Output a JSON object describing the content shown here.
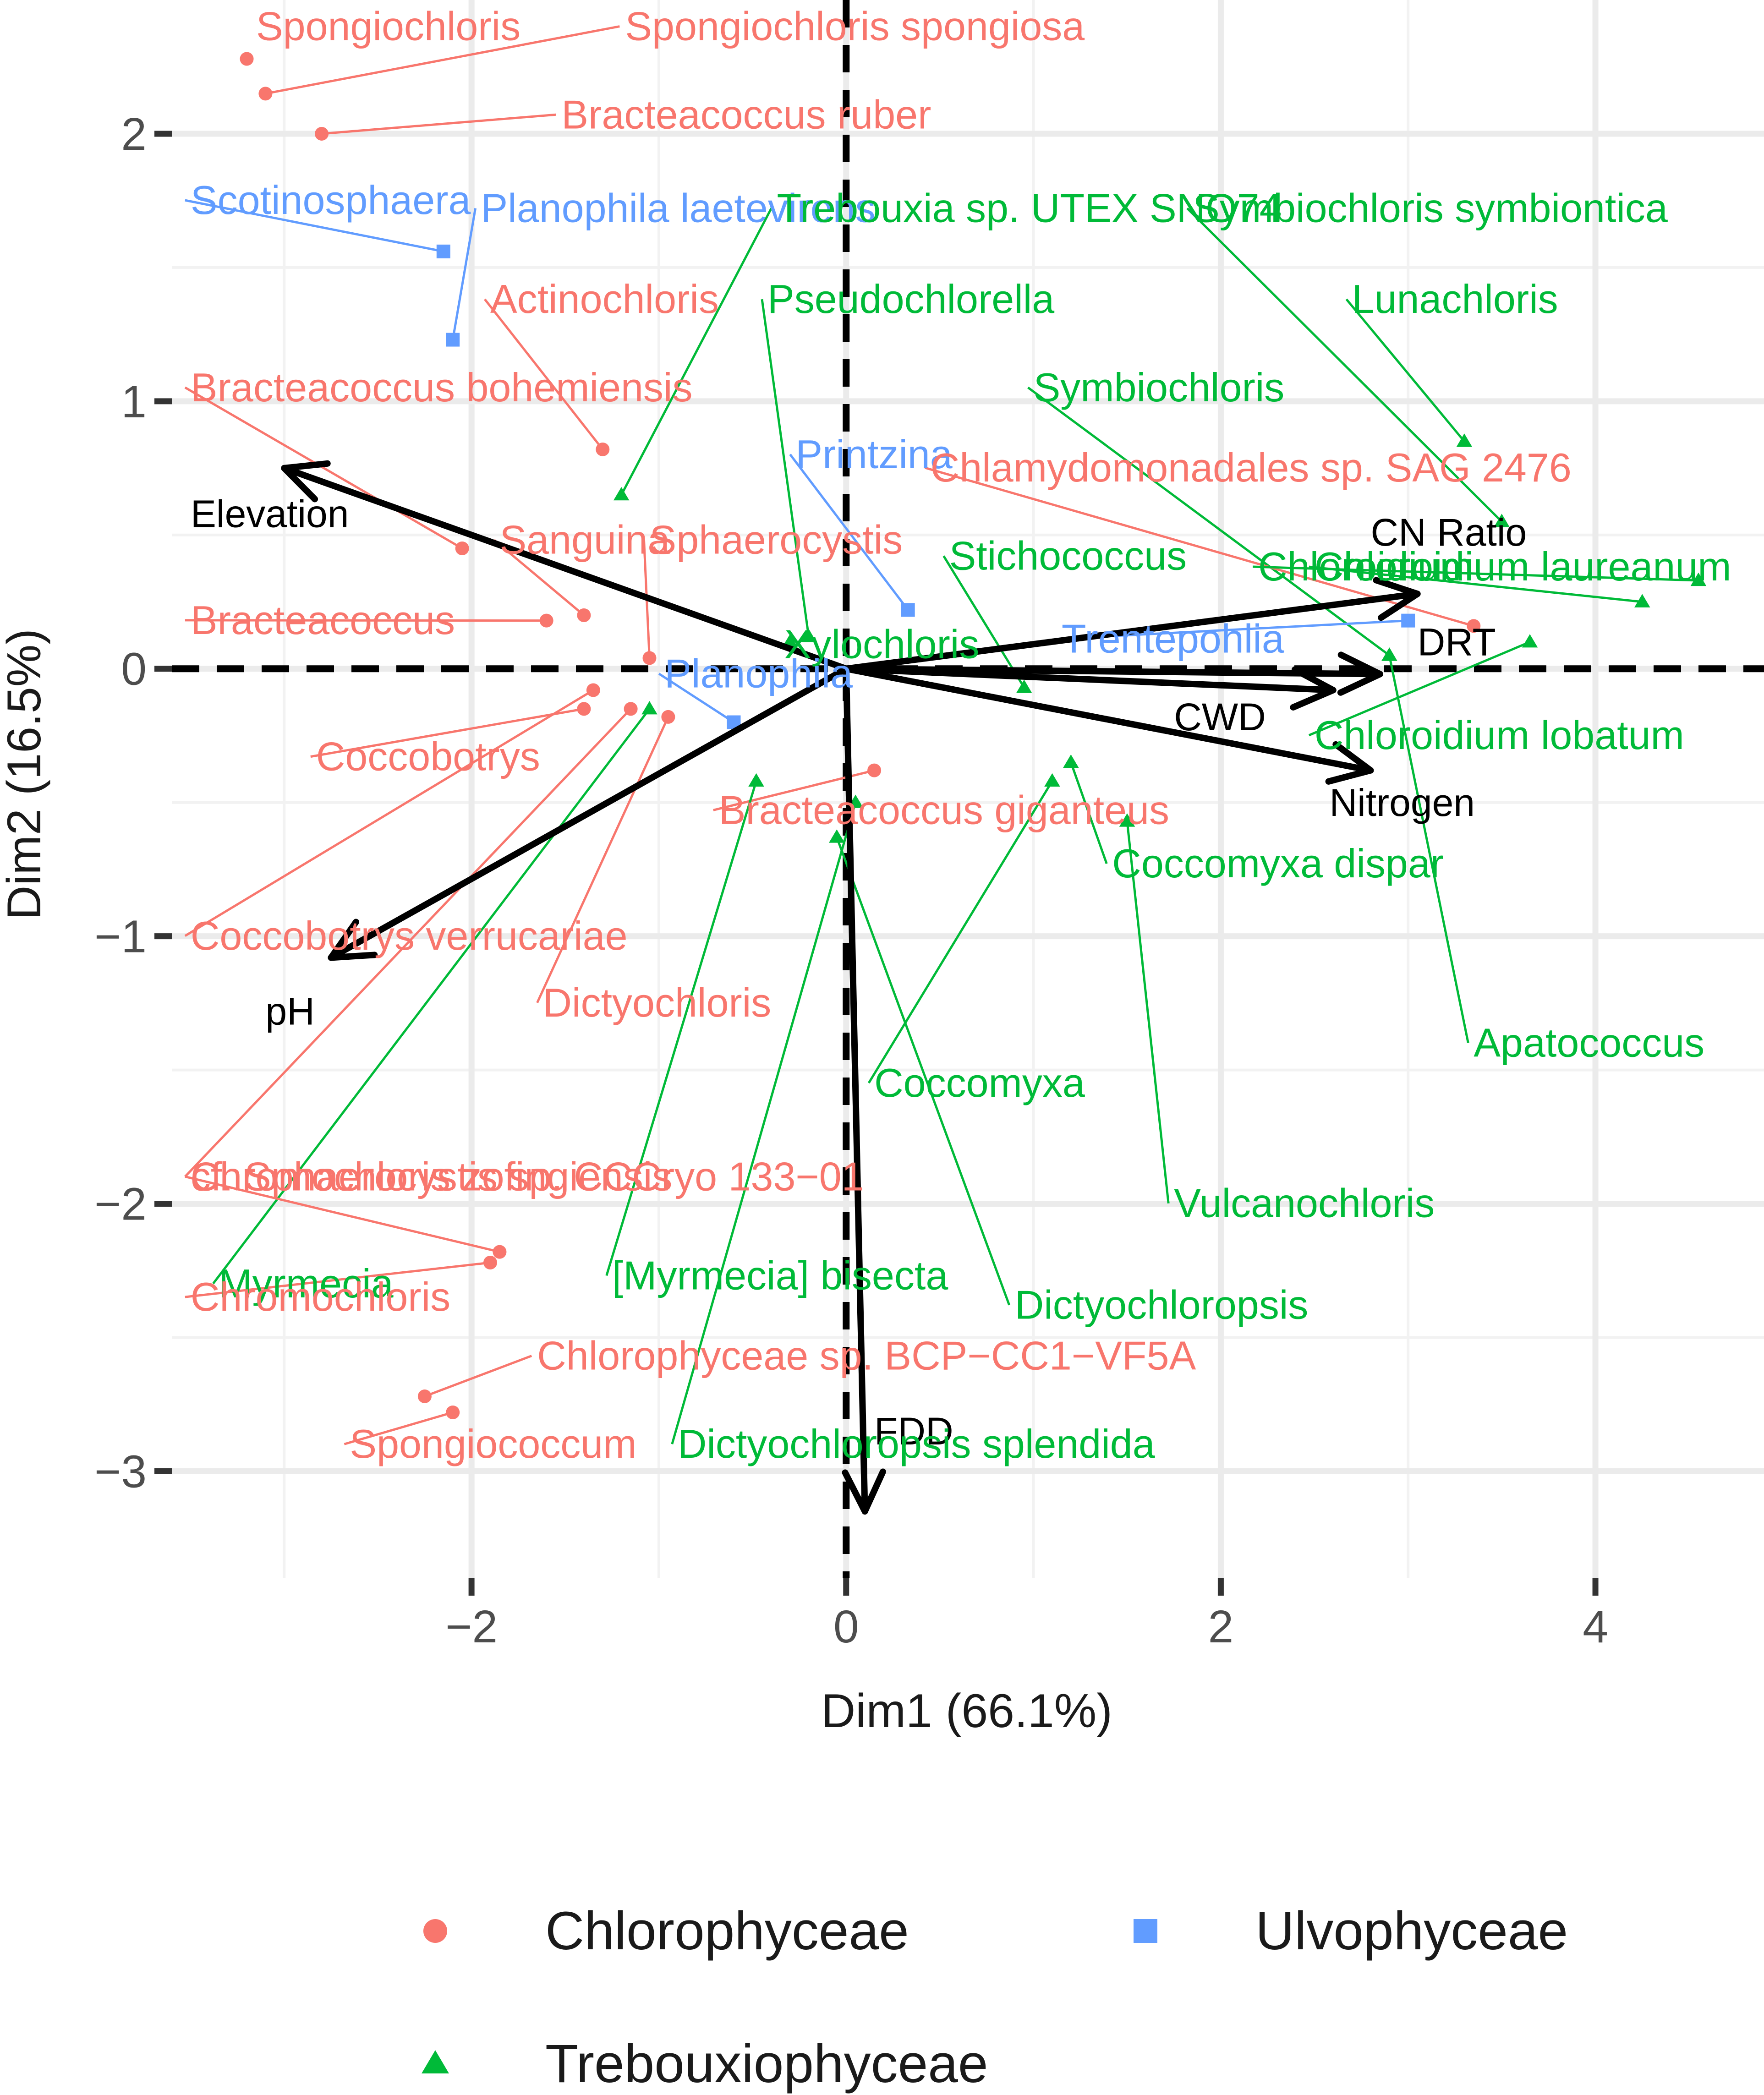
{
  "chart_data": {
    "type": "scatter",
    "subtype": "pca-biplot",
    "xlabel": "Dim1 (66.1%)",
    "ylabel": "Dim2 (16.5%)",
    "xlim": [
      -3.6,
      4.9
    ],
    "ylim": [
      -3.4,
      2.5
    ],
    "x_ticks": [
      -2,
      0,
      2,
      4
    ],
    "y_ticks": [
      -3,
      -2,
      -1,
      0,
      1,
      2
    ],
    "x_tick_labels": [
      "−2",
      "0",
      "2",
      "4"
    ],
    "y_tick_labels": [
      "−3",
      "−2",
      "−1",
      "0",
      "1",
      "2"
    ],
    "grid": true,
    "legend_position": "bottom",
    "colors": {
      "Chlorophyceae": "#F8766D",
      "Ulvophyceae": "#619CFF",
      "Trebouxiophyceae": "#00BA38"
    },
    "groups": [
      {
        "name": "Chlorophyceae",
        "marker": "circle"
      },
      {
        "name": "Ulvophyceae",
        "marker": "square"
      },
      {
        "name": "Trebouxiophyceae",
        "marker": "triangle"
      }
    ],
    "points": [
      {
        "label": "Spongiochloris",
        "group": "Chlorophyceae",
        "x": -3.2,
        "y": 2.28,
        "lx": -3.15,
        "ly": 2.35,
        "anchor": "start"
      },
      {
        "label": "Spongiochloris spongiosa",
        "group": "Chlorophyceae",
        "x": -3.1,
        "y": 2.15,
        "lx": -1.18,
        "ly": 2.35,
        "anchor": "start"
      },
      {
        "label": "Bracteacoccus ruber",
        "group": "Chlorophyceae",
        "x": -2.8,
        "y": 2.0,
        "lx": -1.52,
        "ly": 2.02,
        "anchor": "start"
      },
      {
        "label": "Scotinosphaera",
        "group": "Ulvophyceae",
        "x": -2.15,
        "y": 1.56,
        "lx": -3.5,
        "ly": 1.7,
        "anchor": "start"
      },
      {
        "label": "Planophila laetevirens",
        "group": "Ulvophyceae",
        "x": -2.1,
        "y": 1.23,
        "lx": -1.95,
        "ly": 1.67,
        "anchor": "start"
      },
      {
        "label": "Trebouxia sp. UTEX SNO74",
        "group": "Trebouxiophyceae",
        "x": -1.2,
        "y": 0.65,
        "lx": -0.37,
        "ly": 1.67,
        "anchor": "start"
      },
      {
        "label": "Symbiochloris symbiontica",
        "group": "Trebouxiophyceae",
        "x": 3.5,
        "y": 0.55,
        "lx": 1.85,
        "ly": 1.67,
        "anchor": "start"
      },
      {
        "label": "Actinochloris",
        "group": "Chlorophyceae",
        "x": -1.3,
        "y": 0.82,
        "lx": -1.9,
        "ly": 1.33,
        "anchor": "start"
      },
      {
        "label": "Pseudochlorella",
        "group": "Trebouxiophyceae",
        "x": -0.2,
        "y": 0.12,
        "lx": -0.42,
        "ly": 1.33,
        "anchor": "start"
      },
      {
        "label": "Lunachloris",
        "group": "Trebouxiophyceae",
        "x": 3.3,
        "y": 0.85,
        "lx": 2.7,
        "ly": 1.33,
        "anchor": "start"
      },
      {
        "label": "Bracteacoccus bohemiensis",
        "group": "Chlorophyceae",
        "x": -2.05,
        "y": 0.45,
        "lx": -3.5,
        "ly": 1.0,
        "anchor": "start"
      },
      {
        "label": "Symbiochloris",
        "group": "Trebouxiophyceae",
        "x": 2.9,
        "y": 0.05,
        "lx": 1.0,
        "ly": 1.0,
        "anchor": "start"
      },
      {
        "label": "Printzina",
        "group": "Ulvophyceae",
        "x": 0.33,
        "y": 0.22,
        "lx": -0.27,
        "ly": 0.75,
        "anchor": "start"
      },
      {
        "label": "Chlamydomonadales sp. SAG 2476",
        "group": "Chlorophyceae",
        "x": 3.35,
        "y": 0.16,
        "lx": 0.45,
        "ly": 0.7,
        "anchor": "start"
      },
      {
        "label": "Sanguina",
        "group": "Chlorophyceae",
        "x": -1.4,
        "y": 0.2,
        "lx": -1.85,
        "ly": 0.43,
        "anchor": "start"
      },
      {
        "label": "Sphaerocystis",
        "group": "Chlorophyceae",
        "x": -1.05,
        "y": 0.04,
        "lx": -1.05,
        "ly": 0.43,
        "anchor": "start"
      },
      {
        "label": "Stichococcus",
        "group": "Trebouxiophyceae",
        "x": 0.95,
        "y": -0.07,
        "lx": 0.55,
        "ly": 0.37,
        "anchor": "start"
      },
      {
        "label": "Chloroidium",
        "group": "Trebouxiophyceae",
        "x": 4.55,
        "y": 0.33,
        "lx": 2.2,
        "ly": 0.33,
        "anchor": "start"
      },
      {
        "label": "Chloroidium laureanum",
        "group": "Trebouxiophyceae",
        "x": 4.25,
        "y": 0.25,
        "lx": 2.5,
        "ly": 0.33,
        "anchor": "start"
      },
      {
        "label": "Bracteacoccus",
        "group": "Chlorophyceae",
        "x": -1.6,
        "y": 0.18,
        "lx": -3.5,
        "ly": 0.13,
        "anchor": "start"
      },
      {
        "label": "Xylochloris",
        "group": "Trebouxiophyceae",
        "x": -0.3,
        "y": 0.1,
        "lx": -0.33,
        "ly": 0.04,
        "anchor": "start"
      },
      {
        "label": "Trentepohlia",
        "group": "Ulvophyceae",
        "x": 3.0,
        "y": 0.18,
        "lx": 1.15,
        "ly": 0.06,
        "anchor": "start"
      },
      {
        "label": "Planophila",
        "group": "Ulvophyceae",
        "x": -0.6,
        "y": -0.2,
        "lx": -0.97,
        "ly": -0.07,
        "anchor": "start"
      },
      {
        "label": "Coccobotrys",
        "group": "Chlorophyceae",
        "x": -1.4,
        "y": -0.15,
        "lx": -2.83,
        "ly": -0.38,
        "anchor": "start"
      },
      {
        "label": "Chloroidium lobatum",
        "group": "Trebouxiophyceae",
        "x": 3.65,
        "y": 0.1,
        "lx": 2.5,
        "ly": -0.3,
        "anchor": "start"
      },
      {
        "label": "Bracteacoccus giganteus",
        "group": "Chlorophyceae",
        "x": 0.15,
        "y": -0.38,
        "lx": -0.68,
        "ly": -0.58,
        "anchor": "start"
      },
      {
        "label": "Coccomyxa dispar",
        "group": "Trebouxiophyceae",
        "x": 1.2,
        "y": -0.35,
        "lx": 1.42,
        "ly": -0.78,
        "anchor": "start"
      },
      {
        "label": "Coccobotrys verrucariae",
        "group": "Chlorophyceae",
        "x": -1.35,
        "y": -0.08,
        "lx": -3.5,
        "ly": -1.05,
        "anchor": "start"
      },
      {
        "label": "Dictyochloris",
        "group": "Chlorophyceae",
        "x": -0.95,
        "y": -0.18,
        "lx": -1.62,
        "ly": -1.3,
        "anchor": "start"
      },
      {
        "label": "Apatococcus",
        "group": "Trebouxiophyceae",
        "x": 2.9,
        "y": 0.05,
        "lx": 3.35,
        "ly": -1.45,
        "anchor": "start"
      },
      {
        "label": "Coccomyxa",
        "group": "Trebouxiophyceae",
        "x": 1.1,
        "y": -0.42,
        "lx": 0.15,
        "ly": -1.6,
        "anchor": "start"
      },
      {
        "label": "cf. Sphaerocystis sp. CCCryo 133−01",
        "group": "Chlorophyceae",
        "x": -1.15,
        "y": -0.15,
        "lx": -3.5,
        "ly": -1.95,
        "anchor": "start"
      },
      {
        "label": "Vulcanochloris",
        "group": "Trebouxiophyceae",
        "x": 1.5,
        "y": -0.57,
        "lx": 1.75,
        "ly": -2.05,
        "anchor": "start"
      },
      {
        "label": "Myrmecia",
        "group": "Trebouxiophyceae",
        "x": -1.05,
        "y": -0.15,
        "lx": -3.35,
        "ly": -2.35,
        "anchor": "start"
      },
      {
        "label": "[Myrmecia] bisecta",
        "group": "Trebouxiophyceae",
        "x": -0.48,
        "y": -0.42,
        "lx": -1.25,
        "ly": -2.32,
        "anchor": "start"
      },
      {
        "label": "Dictyochloropsis",
        "group": "Trebouxiophyceae",
        "x": -0.05,
        "y": -0.63,
        "lx": 0.9,
        "ly": -2.43,
        "anchor": "start"
      },
      {
        "label": "Dictyochloropsis splendida",
        "group": "Trebouxiophyceae",
        "x": 0.05,
        "y": -0.5,
        "lx": -0.9,
        "ly": -2.95,
        "anchor": "start"
      },
      {
        "label": "Chromochloris zofingiensis",
        "group": "Chlorophyceae",
        "x": -1.85,
        "y": -2.18,
        "lx": -3.5,
        "ly": -1.95,
        "anchor": "start"
      },
      {
        "label": "Chromochloris",
        "group": "Chlorophyceae",
        "x": -1.9,
        "y": -2.22,
        "lx": -3.5,
        "ly": -2.4,
        "anchor": "start"
      },
      {
        "label": "Chlorophyceae sp. BCP−CC1−VF5A",
        "group": "Chlorophyceae",
        "x": -2.25,
        "y": -2.72,
        "lx": -1.65,
        "ly": -2.62,
        "anchor": "start"
      },
      {
        "label": "Spongiococcum",
        "group": "Chlorophyceae",
        "x": -2.1,
        "y": -2.78,
        "lx": -2.65,
        "ly": -2.95,
        "anchor": "start"
      }
    ],
    "vectors": [
      {
        "label": "Elevation",
        "x": -3.0,
        "y": 0.75,
        "lx": -3.5,
        "ly": 0.53,
        "anchor": "start"
      },
      {
        "label": "pH",
        "x": -2.75,
        "y": -1.08,
        "lx": -3.1,
        "ly": -1.33,
        "anchor": "start"
      },
      {
        "label": "CN Ratio",
        "x": 3.05,
        "y": 0.28,
        "lx": 2.8,
        "ly": 0.46,
        "anchor": "start"
      },
      {
        "label": "DRT",
        "x": 2.85,
        "y": -0.02,
        "lx": 3.05,
        "ly": 0.05,
        "anchor": "start"
      },
      {
        "label": "CWD",
        "x": 2.6,
        "y": -0.08,
        "lx": 1.75,
        "ly": -0.23,
        "anchor": "start"
      },
      {
        "label": "Nitrogen",
        "x": 2.8,
        "y": -0.38,
        "lx": 2.58,
        "ly": -0.55,
        "anchor": "start"
      },
      {
        "label": "FDD",
        "x": 0.1,
        "y": -3.15,
        "lx": 0.15,
        "ly": -2.9,
        "anchor": "start"
      }
    ]
  }
}
